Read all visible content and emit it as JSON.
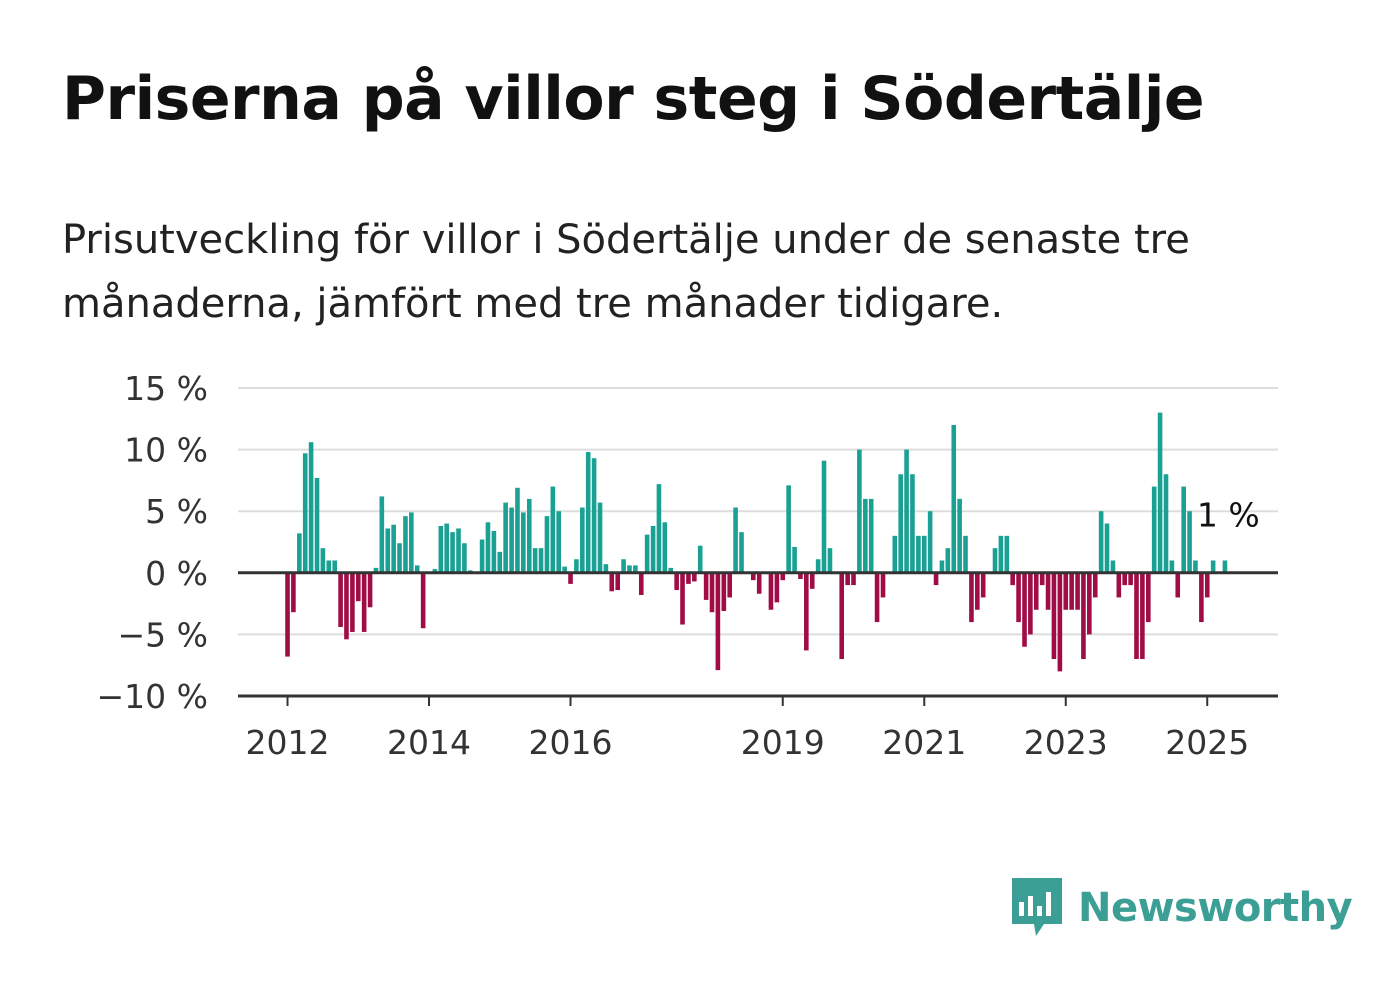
{
  "title": "Priserna på villor steg i Södertälje",
  "subtitle": "Prisutveckling för villor i Södertälje under de senaste tre månaderna, jämfört med tre månader tidigare.",
  "brand": "Newsworthy",
  "colors": {
    "positive": "#1aa193",
    "negative": "#a00c45",
    "grid": "#dddddd",
    "axis": "#333333",
    "brand": "#3c9f95"
  },
  "chart_data": {
    "type": "bar",
    "ylabel": "",
    "xlabel": "",
    "ylim": [
      -10,
      15
    ],
    "y_ticks": [
      {
        "value": 15,
        "label": "15 %"
      },
      {
        "value": 10,
        "label": "10 %"
      },
      {
        "value": 5,
        "label": "5 %"
      },
      {
        "value": 0,
        "label": "0 %"
      },
      {
        "value": -5,
        "label": "−5 %"
      },
      {
        "value": -10,
        "label": "−10 %"
      }
    ],
    "x_ticks": [
      {
        "value": 2012,
        "label": "2012"
      },
      {
        "value": 2014,
        "label": "2014"
      },
      {
        "value": 2016,
        "label": "2016"
      },
      {
        "value": 2019,
        "label": "2019"
      },
      {
        "value": 2021,
        "label": "2021"
      },
      {
        "value": 2023,
        "label": "2023"
      },
      {
        "value": 2025,
        "label": "2025"
      }
    ],
    "xlim": [
      2011.3,
      2026.0
    ],
    "last_value_label": "1 %",
    "unit": "%",
    "x": [
      2012.0,
      2012.083,
      2012.167,
      2012.25,
      2012.333,
      2012.417,
      2012.5,
      2012.583,
      2012.667,
      2012.75,
      2012.833,
      2012.917,
      2013.0,
      2013.083,
      2013.167,
      2013.25,
      2013.333,
      2013.417,
      2013.5,
      2013.583,
      2013.667,
      2013.75,
      2013.833,
      2013.917,
      2014.0,
      2014.083,
      2014.167,
      2014.25,
      2014.333,
      2014.417,
      2014.5,
      2014.583,
      2014.667,
      2014.75,
      2014.833,
      2014.917,
      2015.0,
      2015.083,
      2015.167,
      2015.25,
      2015.333,
      2015.417,
      2015.5,
      2015.583,
      2015.667,
      2015.75,
      2015.833,
      2015.917,
      2016.0,
      2016.083,
      2016.167,
      2016.25,
      2016.333,
      2016.417,
      2016.5,
      2016.583,
      2016.667,
      2016.75,
      2016.833,
      2016.917,
      2017.0,
      2017.083,
      2017.167,
      2017.25,
      2017.333,
      2017.417,
      2017.5,
      2017.583,
      2017.667,
      2017.75,
      2017.833,
      2017.917,
      2018.0,
      2018.083,
      2018.167,
      2018.25,
      2018.333,
      2018.417,
      2018.5,
      2018.583,
      2018.667,
      2018.75,
      2018.833,
      2018.917,
      2019.0,
      2019.083,
      2019.167,
      2019.25,
      2019.333,
      2019.417,
      2019.5,
      2019.583,
      2019.667,
      2019.75,
      2019.833,
      2019.917,
      2020.0,
      2020.083,
      2020.167,
      2020.25,
      2020.333,
      2020.417,
      2020.5,
      2020.583,
      2020.667,
      2020.75,
      2020.833,
      2020.917,
      2021.0,
      2021.083,
      2021.167,
      2021.25,
      2021.333,
      2021.417,
      2021.5,
      2021.583,
      2021.667,
      2021.75,
      2021.833,
      2021.917,
      2022.0,
      2022.083,
      2022.167,
      2022.25,
      2022.333,
      2022.417,
      2022.5,
      2022.583,
      2022.667,
      2022.75,
      2022.833,
      2022.917,
      2023.0,
      2023.083,
      2023.167,
      2023.25,
      2023.333,
      2023.417,
      2023.5,
      2023.583,
      2023.667,
      2023.75,
      2023.833,
      2023.917,
      2024.0,
      2024.083,
      2024.167,
      2024.25,
      2024.333,
      2024.417,
      2024.5,
      2024.583,
      2024.667,
      2024.75,
      2024.833,
      2024.917,
      2025.0,
      2025.083,
      2025.167,
      2025.25
    ],
    "values": [
      -6.8,
      -3.2,
      3.2,
      9.7,
      10.6,
      7.7,
      2.0,
      1.0,
      1.0,
      -4.4,
      -5.4,
      -4.8,
      -2.3,
      -4.8,
      -2.8,
      0.4,
      6.2,
      3.6,
      3.9,
      2.4,
      4.6,
      4.9,
      0.6,
      -4.5,
      0.0,
      0.3,
      3.8,
      4.0,
      3.3,
      3.6,
      2.4,
      0.2,
      0.0,
      2.7,
      4.1,
      3.4,
      1.7,
      5.7,
      5.3,
      6.9,
      4.9,
      6.0,
      2.0,
      2.0,
      4.6,
      7.0,
      5.0,
      0.5,
      -0.9,
      1.1,
      5.3,
      9.8,
      9.3,
      5.7,
      0.7,
      -1.5,
      -1.4,
      1.1,
      0.6,
      0.6,
      -1.8,
      3.1,
      3.8,
      7.2,
      4.1,
      0.4,
      -1.4,
      -4.2,
      -0.9,
      -0.7,
      2.2,
      -2.2,
      -3.2,
      -7.9,
      -3.1,
      -2.0,
      5.3,
      3.3,
      0.1,
      -0.6,
      -1.7,
      -0.1,
      -3.0,
      -2.4,
      -0.6,
      7.1,
      2.1,
      -0.5,
      -6.3,
      -1.3,
      1.1,
      9.1,
      2.0,
      0.0,
      -7.0,
      -1.0,
      -1.0,
      10.0,
      6.0,
      6.0,
      -4.0,
      -2.0,
      0.0,
      3.0,
      8.0,
      10.0,
      8.0,
      3.0,
      3.0,
      5.0,
      -1.0,
      1.0,
      2.0,
      12.0,
      6.0,
      3.0,
      -4.0,
      -3.0,
      -2.0,
      0.0,
      2.0,
      3.0,
      3.0,
      -1.0,
      -4.0,
      -6.0,
      -5.0,
      -3.0,
      -1.0,
      -3.0,
      -7.0,
      -8.0,
      -3.0,
      -3.0,
      -3.0,
      -7.0,
      -5.0,
      -2.0,
      5.0,
      4.0,
      1.0,
      -2.0,
      -1.0,
      -1.0,
      -7.0,
      -7.0,
      -4.0,
      7.0,
      13.0,
      8.0,
      1.0,
      -2.0,
      7.0,
      5.0,
      1.0,
      -4.0,
      -2.0,
      1.0,
      0.0,
      1.0
    ]
  }
}
